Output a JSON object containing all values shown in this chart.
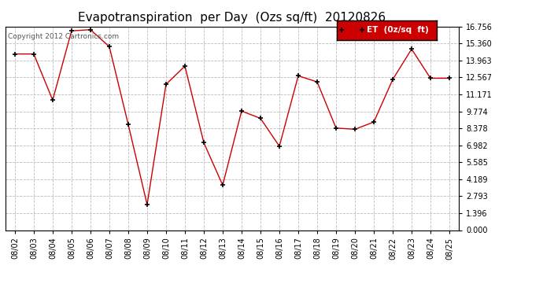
{
  "title": "Evapotranspiration  per Day  (Ozs sq/ft)  20120826",
  "copyright": "Copyright 2012 Cartronics.com",
  "legend_label": "ET  (0z/sq  ft)",
  "dates": [
    "08/02",
    "08/03",
    "08/04",
    "08/05",
    "08/06",
    "08/07",
    "08/08",
    "08/09",
    "08/10",
    "08/11",
    "08/12",
    "08/13",
    "08/14",
    "08/15",
    "08/16",
    "08/17",
    "08/18",
    "08/19",
    "08/20",
    "08/21",
    "08/22",
    "08/23",
    "08/24",
    "08/25"
  ],
  "values": [
    14.5,
    14.5,
    10.7,
    16.4,
    16.5,
    15.1,
    8.7,
    2.1,
    12.0,
    13.5,
    7.2,
    3.7,
    9.8,
    9.2,
    6.9,
    12.7,
    12.2,
    8.4,
    8.3,
    8.9,
    12.4,
    14.9,
    12.5,
    12.5
  ],
  "line_color": "#cc0000",
  "marker": "+",
  "marker_color": "#000000",
  "bg_color": "#ffffff",
  "grid_color": "#bbbbbb",
  "yticks": [
    0.0,
    1.396,
    2.793,
    4.189,
    5.585,
    6.982,
    8.378,
    9.774,
    11.171,
    12.567,
    13.963,
    15.36,
    16.756
  ],
  "ylim": [
    0,
    16.756
  ],
  "legend_bg": "#cc0000",
  "legend_text_color": "#ffffff",
  "title_fontsize": 11,
  "tick_fontsize": 7,
  "copyright_fontsize": 6.5,
  "legend_fontsize": 7.5
}
